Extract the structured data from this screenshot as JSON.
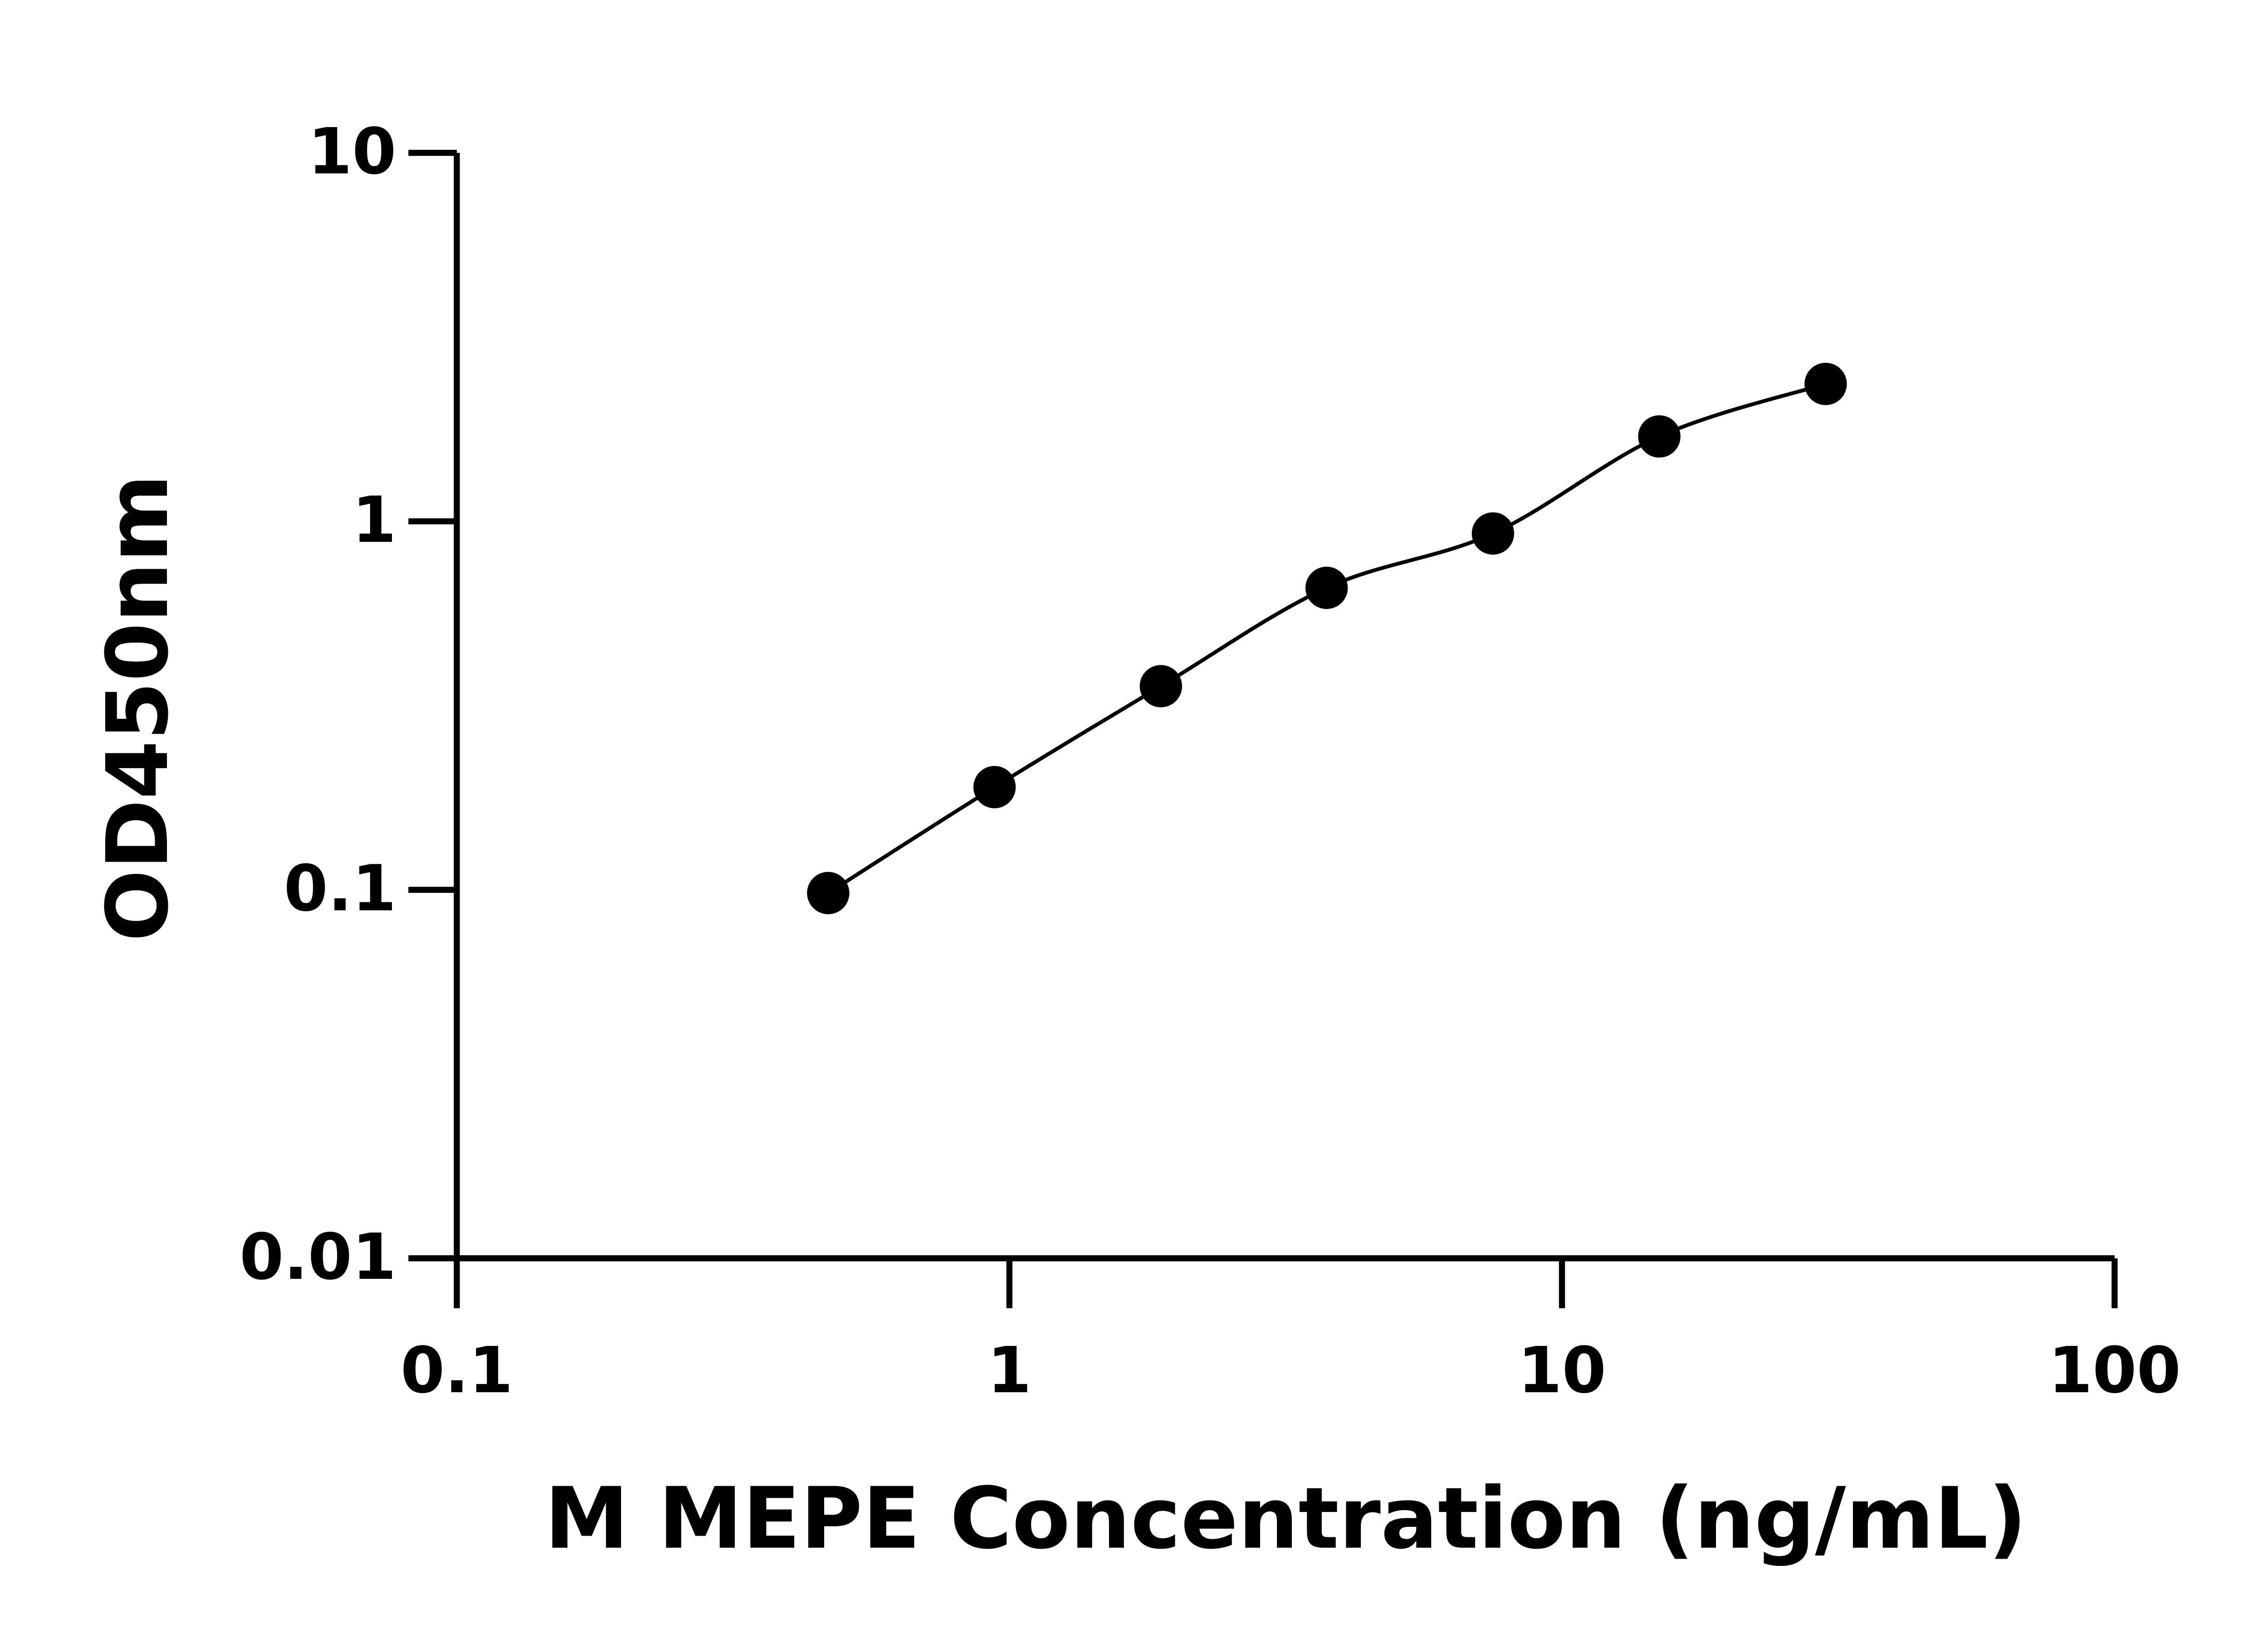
{
  "chart_data": {
    "type": "scatter",
    "x_label": "M MEPE Concentration (ng/mL)",
    "y_label": "OD450nm",
    "x": [
      0.47,
      0.94,
      1.88,
      3.75,
      7.5,
      15,
      30
    ],
    "series": [
      {
        "color": "#000000",
        "values": [
          0.098,
          0.19,
          0.357,
          0.66,
          0.927,
          1.7,
          2.36
        ]
      }
    ],
    "xlim": [
      0.1,
      100
    ],
    "xticks": [
      0.1,
      1,
      10,
      100
    ],
    "ylim": [
      0.01,
      10
    ],
    "yticks": [
      0.01,
      0.1,
      1,
      10
    ],
    "x_log": true,
    "y_log": true,
    "fit_line": true
  }
}
